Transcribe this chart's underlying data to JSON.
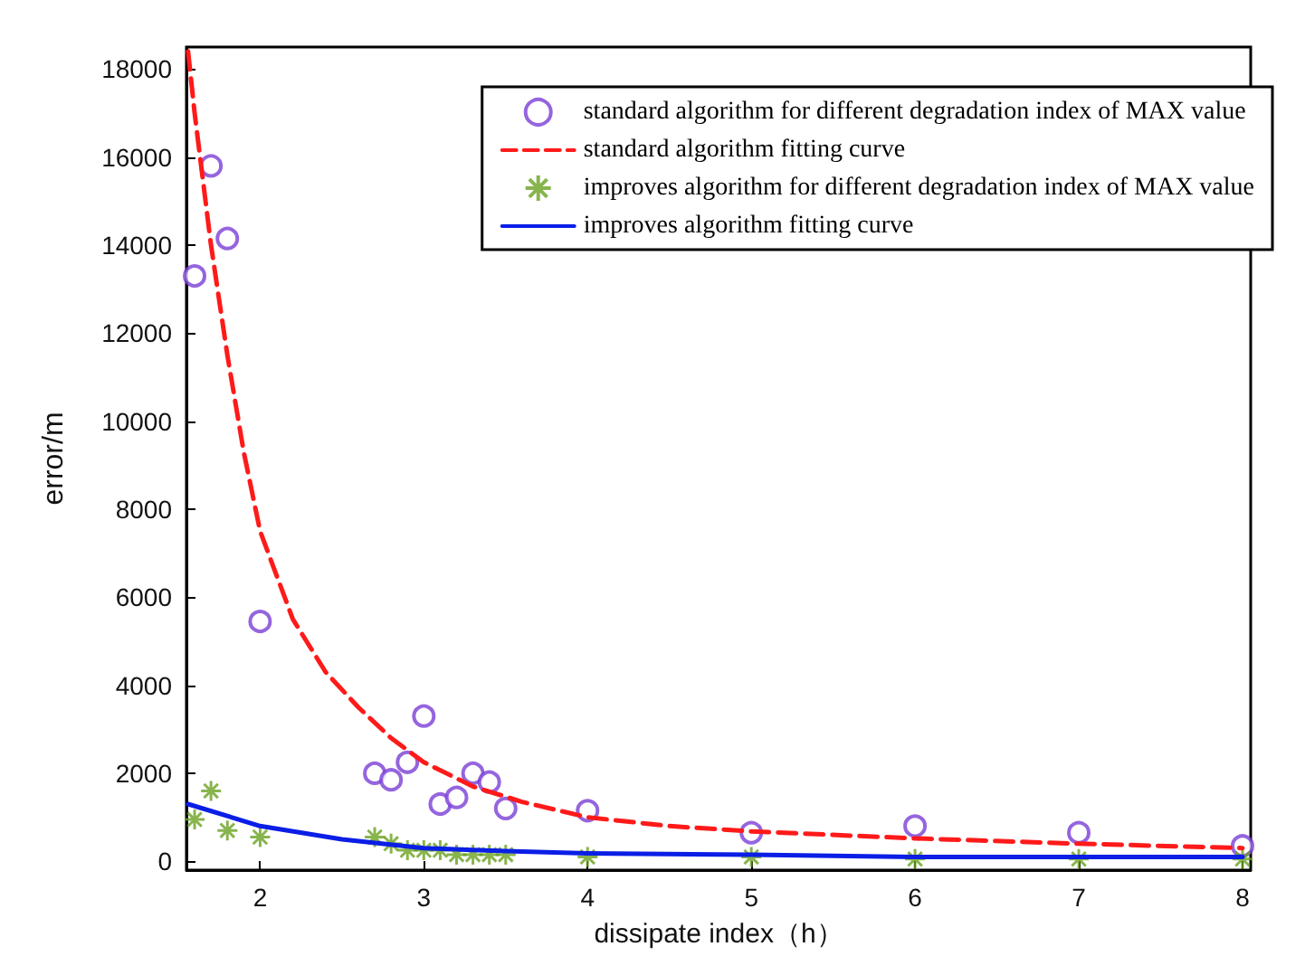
{
  "chart_data": {
    "type": "scatter",
    "xlabel": "dissipate index（h）",
    "ylabel": "error/m",
    "xlim": [
      1.55,
      8.05
    ],
    "xticks": [
      2,
      3,
      4,
      5,
      6,
      7,
      8
    ],
    "ylim": [
      -200,
      18500
    ],
    "yticks": [
      0,
      2000,
      4000,
      6000,
      8000,
      10000,
      12000,
      14000,
      16000,
      18000
    ],
    "grid": false,
    "legend": "top right",
    "series": [
      {
        "name": "standard algorithm for different degradation index of MAX value",
        "marker": "circle",
        "color": "#7b3fd6",
        "x": [
          1.6,
          1.7,
          1.8,
          2.0,
          2.7,
          2.8,
          2.9,
          3.0,
          3.1,
          3.2,
          3.3,
          3.4,
          3.5,
          4.0,
          5.0,
          6.0,
          7.0,
          8.0
        ],
        "values": [
          13300,
          15800,
          14150,
          5450,
          2000,
          1850,
          2250,
          3300,
          1300,
          1450,
          2000,
          1800,
          1200,
          1150,
          650,
          800,
          650,
          350
        ]
      },
      {
        "name": "standard algorithm fitting curve",
        "type": "line",
        "marker": "none",
        "line_style": "dashed",
        "color": "#ff1a1a",
        "x": [
          1.56,
          1.6,
          1.7,
          1.8,
          1.9,
          2.0,
          2.2,
          2.4,
          2.6,
          2.8,
          3.0,
          3.3,
          3.6,
          4.0,
          4.5,
          5.0,
          6.0,
          7.0,
          8.0
        ],
        "values": [
          18400,
          17000,
          14000,
          11500,
          9300,
          7500,
          5500,
          4300,
          3500,
          2800,
          2250,
          1700,
          1350,
          1000,
          800,
          680,
          520,
          400,
          300
        ]
      },
      {
        "name": "improves algorithm for different degradation index of MAX value",
        "marker": "cross",
        "color": "#6aa121",
        "x": [
          1.6,
          1.7,
          1.8,
          2.0,
          2.7,
          2.8,
          2.9,
          3.0,
          3.1,
          3.2,
          3.3,
          3.4,
          3.5,
          4.0,
          5.0,
          6.0,
          7.0,
          8.0
        ],
        "values": [
          950,
          1600,
          700,
          550,
          550,
          400,
          250,
          250,
          250,
          150,
          150,
          150,
          150,
          100,
          100,
          50,
          50,
          50
        ]
      },
      {
        "name": "improves algorithm fitting curve",
        "type": "line",
        "marker": "none",
        "line_style": "solid",
        "color": "#0a1ee6",
        "x": [
          1.56,
          2.0,
          2.5,
          3.0,
          3.5,
          4.0,
          5.0,
          6.0,
          7.0,
          8.0
        ],
        "values": [
          1300,
          800,
          500,
          300,
          230,
          180,
          150,
          100,
          100,
          100
        ]
      }
    ]
  }
}
